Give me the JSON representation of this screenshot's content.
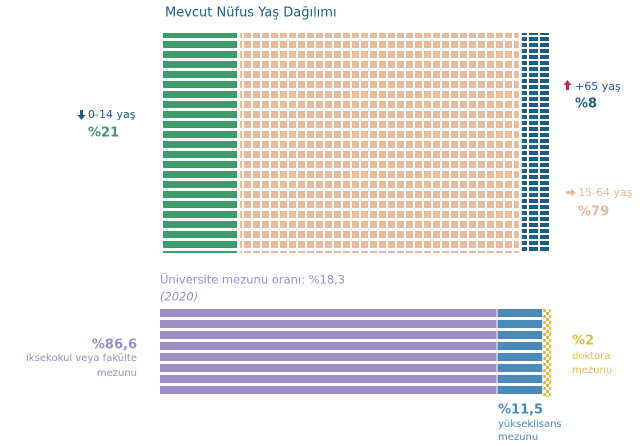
{
  "chart_data": [
    {
      "type": "waffle",
      "title": "Mevcut Nüfus Yaş Dağılımı",
      "categories": [
        "0-14 yaş",
        "15-64 yaş",
        "+65 yaş"
      ],
      "values": [
        21,
        79,
        8
      ],
      "value_labels": [
        "%21",
        "%79",
        "%8"
      ],
      "colors": [
        "#3f9b6b",
        "#e9bb9d",
        "#1f5d85"
      ]
    },
    {
      "type": "stacked-bar",
      "title": "Üniversite mezunu oranı: %18,3",
      "subtitle": "(2020)",
      "categories": [
        [
          "iksekokul veya fakülte",
          "mezunu"
        ],
        [
          "yükseklisans",
          "mezunu"
        ],
        [
          "doktora",
          "mezunu"
        ]
      ],
      "values": [
        86.6,
        11.5,
        2
      ],
      "value_labels": [
        "%86,6",
        "%11,5",
        "%2"
      ],
      "colors": [
        "#9b8fc6",
        "#4b89b9",
        "#e8b94c"
      ]
    }
  ]
}
